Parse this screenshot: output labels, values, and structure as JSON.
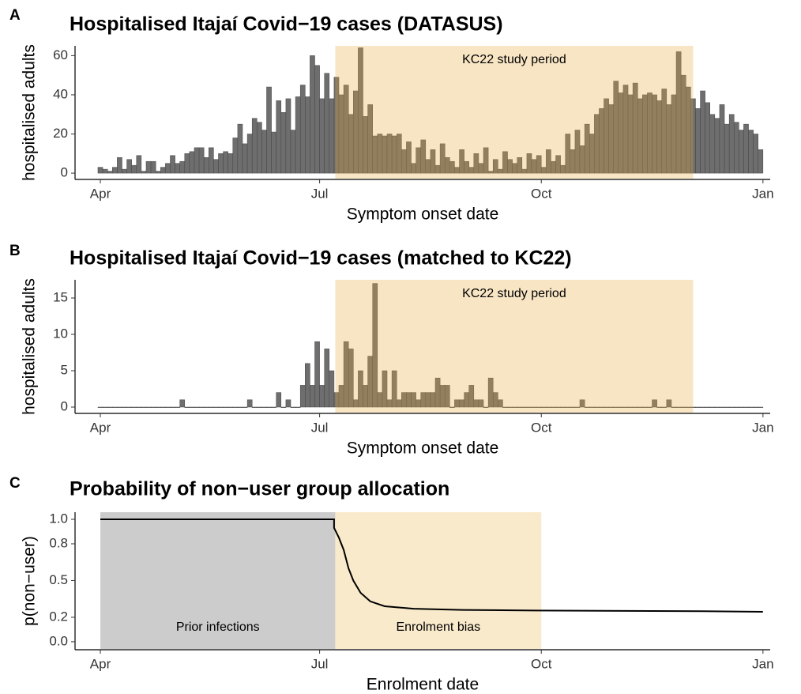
{
  "chart_data": [
    {
      "type": "bar",
      "panel": "A",
      "title": "Hospitalised Itajaí Covid−19 cases (DATASUS)",
      "xlabel": "Symptom onset date",
      "ylabel": "hospitalised adults",
      "color": "#6e6e6e",
      "x": [
        0,
        2,
        4,
        6,
        8,
        10,
        12,
        14,
        16,
        18,
        20,
        22,
        24,
        26,
        28,
        30,
        32,
        34,
        36,
        38,
        40,
        42,
        44,
        46,
        48,
        50,
        52,
        54,
        56,
        58,
        60,
        62,
        64,
        66,
        68,
        70,
        72,
        74,
        76,
        78,
        80,
        82,
        84,
        86,
        88,
        90,
        92,
        94,
        96,
        98,
        100,
        102,
        104,
        106,
        108,
        110,
        112,
        114,
        116,
        118,
        120,
        122,
        124,
        126,
        128,
        130,
        132,
        134,
        136,
        138,
        140,
        142,
        144,
        146,
        148,
        150,
        152,
        154,
        156,
        158,
        160,
        162,
        164,
        166,
        168,
        170,
        172,
        174,
        176,
        178,
        180,
        182,
        184,
        186,
        188,
        190,
        192,
        194,
        196,
        198,
        200,
        202,
        204,
        206,
        208,
        210,
        212,
        214,
        216,
        218,
        220,
        222,
        224,
        226,
        228,
        230,
        232,
        234,
        236,
        238,
        240,
        242,
        244,
        246,
        248,
        250,
        252,
        254,
        256,
        258,
        260,
        262,
        264,
        266,
        268,
        270,
        272,
        274
      ],
      "values": [
        3,
        2,
        1,
        3,
        8,
        2,
        7,
        4,
        9,
        1,
        6,
        6,
        1,
        3,
        5,
        9,
        5,
        6,
        10,
        11,
        13,
        13,
        8,
        13,
        7,
        10,
        11,
        10,
        18,
        25,
        15,
        20,
        28,
        26,
        22,
        44,
        21,
        37,
        31,
        38,
        22,
        39,
        45,
        39,
        60,
        55,
        38,
        51,
        38,
        49,
        40,
        45,
        30,
        42,
        64,
        29,
        35,
        19,
        20,
        19,
        20,
        19,
        20,
        12,
        16,
        5,
        13,
        17,
        7,
        12,
        4,
        15,
        8,
        6,
        3,
        12,
        6,
        3,
        10,
        5,
        13,
        1,
        7,
        2,
        11,
        7,
        5,
        8,
        2,
        10,
        7,
        9,
        3,
        12,
        6,
        9,
        4,
        20,
        12,
        22,
        14,
        25,
        20,
        30,
        33,
        38,
        35,
        47,
        41,
        45,
        40,
        46,
        38,
        40,
        41,
        40,
        37,
        43,
        35,
        40,
        62,
        50,
        44,
        38,
        33,
        42,
        36,
        30,
        28,
        35,
        25,
        30,
        26,
        22,
        25,
        22,
        20,
        12
      ],
      "xlim": [
        -10.5,
        278
      ],
      "ylim": [
        -3.2,
        65
      ],
      "xticks": [
        {
          "value": 0,
          "label": "Apr"
        },
        {
          "value": 91,
          "label": "Jul"
        },
        {
          "value": 183,
          "label": "Oct"
        },
        {
          "value": 275,
          "label": "Jan"
        }
      ],
      "yticks": [
        0,
        20,
        40,
        60
      ],
      "regions": [
        {
          "start": 97.5,
          "end": 246,
          "label": "KC22 study period",
          "color": "#e6aa3c",
          "opacity": 0.3
        }
      ]
    },
    {
      "type": "bar",
      "panel": "B",
      "title": "Hospitalised Itajaí Covid−19 cases (matched to KC22)",
      "xlabel": "Symptom onset date",
      "ylabel": "hospitalised adults",
      "color": "#6e6e6e",
      "x": [
        0,
        2,
        4,
        6,
        8,
        10,
        12,
        14,
        16,
        18,
        20,
        22,
        24,
        26,
        28,
        30,
        32,
        34,
        36,
        38,
        40,
        42,
        44,
        46,
        48,
        50,
        52,
        54,
        56,
        58,
        60,
        62,
        64,
        66,
        68,
        70,
        72,
        74,
        76,
        78,
        80,
        82,
        84,
        86,
        88,
        90,
        92,
        94,
        96,
        98,
        100,
        102,
        104,
        106,
        108,
        110,
        112,
        114,
        116,
        118,
        120,
        122,
        124,
        126,
        128,
        130,
        132,
        134,
        136,
        138,
        140,
        142,
        144,
        146,
        148,
        150,
        152,
        154,
        156,
        158,
        160,
        162,
        164,
        166,
        168,
        170,
        172,
        174,
        176,
        178,
        180,
        182,
        184,
        186,
        188,
        190,
        192,
        194,
        196,
        198,
        200,
        202,
        204,
        206,
        208,
        210,
        212,
        214,
        216,
        218,
        220,
        222,
        224,
        226,
        228,
        230,
        232,
        234,
        236,
        238,
        240,
        242,
        244,
        246,
        248,
        250,
        252,
        254,
        256,
        258,
        260,
        262,
        264,
        266,
        268,
        270,
        272,
        274
      ],
      "values": [
        0,
        0,
        0,
        0,
        0,
        0,
        0,
        0,
        0,
        0,
        0,
        0,
        0,
        0,
        0,
        0,
        0,
        1,
        0,
        0,
        0,
        0,
        0,
        0,
        0,
        0,
        0,
        0,
        0,
        0,
        0,
        1,
        0,
        0,
        0,
        0,
        0,
        2,
        0,
        1,
        0,
        0,
        3,
        6,
        3,
        9,
        3,
        8,
        5,
        2,
        3,
        9,
        8,
        1,
        5,
        3,
        7,
        17,
        2,
        5,
        1,
        5,
        1,
        2,
        2,
        2,
        1,
        2,
        2,
        2,
        4,
        3,
        3,
        0,
        1,
        1,
        2,
        3,
        1,
        1,
        0,
        4,
        2,
        1,
        0,
        0,
        0,
        0,
        0,
        0,
        0,
        0,
        0,
        0,
        0,
        0,
        0,
        0,
        0,
        0,
        1,
        0,
        0,
        0,
        0,
        0,
        0,
        0,
        0,
        0,
        0,
        0,
        0,
        0,
        0,
        1,
        0,
        0,
        1,
        0,
        0,
        0,
        0,
        0,
        0,
        0,
        0,
        0,
        0,
        0,
        0,
        0,
        0,
        0,
        0,
        0,
        0,
        0
      ],
      "xlim": [
        -10.5,
        278
      ],
      "ylim": [
        -0.87,
        17.5
      ],
      "xticks": [
        {
          "value": 0,
          "label": "Apr"
        },
        {
          "value": 91,
          "label": "Jul"
        },
        {
          "value": 183,
          "label": "Oct"
        },
        {
          "value": 275,
          "label": "Jan"
        }
      ],
      "yticks": [
        0,
        5,
        10,
        15
      ],
      "regions": [
        {
          "start": 97.5,
          "end": 246,
          "label": "KC22 study period",
          "color": "#e6aa3c",
          "opacity": 0.3
        }
      ]
    },
    {
      "type": "line",
      "panel": "C",
      "title": "Probability of non−user group allocation",
      "xlabel": "Enrolment date",
      "ylabel": "p(non−user)",
      "color": "#000000",
      "x": [
        0,
        97,
        97,
        99,
        101,
        103,
        105,
        108,
        112,
        118,
        130,
        150,
        180,
        250,
        275
      ],
      "values": [
        1,
        1,
        0.93,
        0.85,
        0.75,
        0.6,
        0.5,
        0.4,
        0.33,
        0.29,
        0.27,
        0.26,
        0.255,
        0.25,
        0.245
      ],
      "xlim": [
        -10.5,
        278
      ],
      "ylim": [
        -0.065,
        1.058
      ],
      "xticks": [
        {
          "value": 0,
          "label": "Apr"
        },
        {
          "value": 91,
          "label": "Jul"
        },
        {
          "value": 183,
          "label": "Oct"
        },
        {
          "value": 275,
          "label": "Jan"
        }
      ],
      "yticks": [
        {
          "value": 0,
          "label": "0.0"
        },
        0.2,
        0.5,
        0.8,
        {
          "value": 1,
          "label": "1.0"
        }
      ],
      "regions": [
        {
          "start": 0,
          "end": 97.5,
          "label": "Prior infections",
          "color": "#cccccc",
          "opacity": 1
        },
        {
          "start": 97.5,
          "end": 183,
          "label": "Enrolment bias",
          "color": "#f9eacb",
          "opacity": 1
        }
      ]
    }
  ]
}
